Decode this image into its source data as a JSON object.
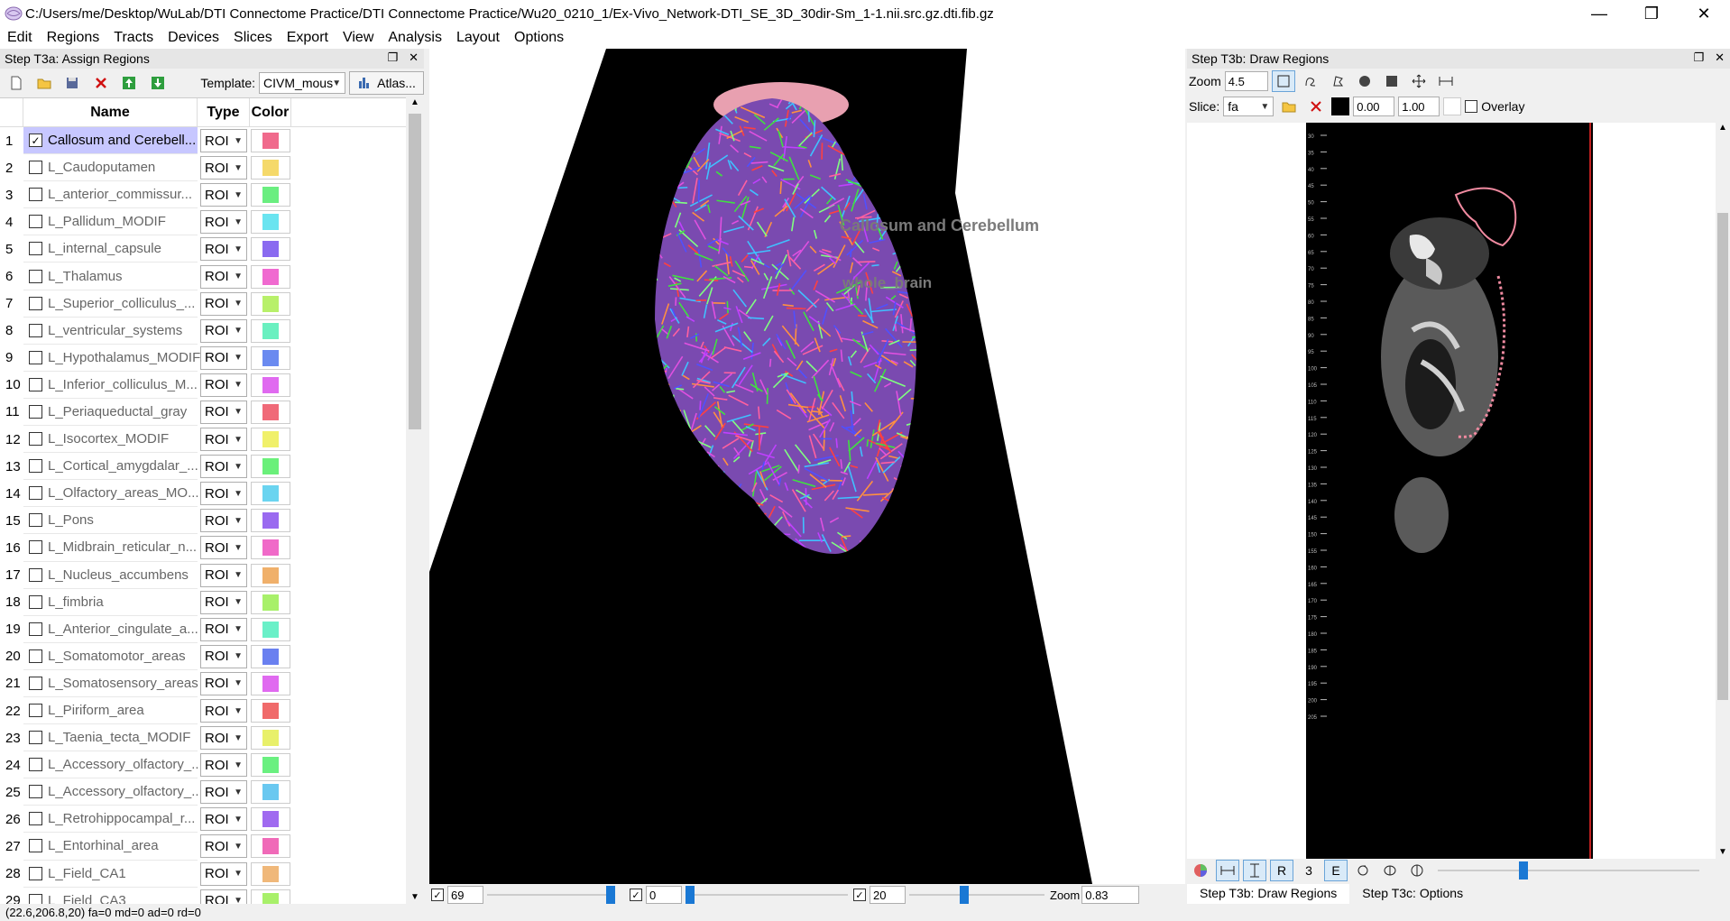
{
  "window": {
    "title": "C:/Users/me/Desktop/WuLab/DTI Connectome Practice/DTI Connectome Practice/Wu20_0210_1/Ex-Vivo_Network-DTI_SE_3D_30dir-Sm_1-1.nii.src.gz.dti.fib.gz",
    "minimize": "—",
    "maximize": "❐",
    "close": "✕"
  },
  "menu": [
    "Edit",
    "Regions",
    "Tracts",
    "Devices",
    "Slices",
    "Export",
    "View",
    "Analysis",
    "Layout",
    "Options"
  ],
  "left_panel": {
    "title": "Step T3a: Assign Regions",
    "template_label": "Template:",
    "template_value": "CIVM_mous",
    "atlas_button": "Atlas...",
    "columns": {
      "name": "Name",
      "type": "Type",
      "color": "Color"
    },
    "rows": [
      {
        "num": "1",
        "name": "Callosum and Cerebell...",
        "type": "ROI",
        "color": "#f06a8c",
        "checked": true
      },
      {
        "num": "2",
        "name": "L_Caudoputamen",
        "type": "ROI",
        "color": "#f5d96a",
        "checked": false
      },
      {
        "num": "3",
        "name": "L_anterior_commissur...",
        "type": "ROI",
        "color": "#6aee80",
        "checked": false
      },
      {
        "num": "4",
        "name": "L_Pallidum_MODIF",
        "type": "ROI",
        "color": "#6ae4f0",
        "checked": false
      },
      {
        "num": "5",
        "name": "L_internal_capsule",
        "type": "ROI",
        "color": "#8a6af0",
        "checked": false
      },
      {
        "num": "6",
        "name": "L_Thalamus",
        "type": "ROI",
        "color": "#f06ad0",
        "checked": false
      },
      {
        "num": "7",
        "name": "L_Superior_colliculus_...",
        "type": "ROI",
        "color": "#b8f06a",
        "checked": false
      },
      {
        "num": "8",
        "name": "L_ventricular_systems",
        "type": "ROI",
        "color": "#6af0c0",
        "checked": false
      },
      {
        "num": "9",
        "name": "L_Hypothalamus_MODIF",
        "type": "ROI",
        "color": "#6a8af0",
        "checked": false
      },
      {
        "num": "10",
        "name": "L_Inferior_colliculus_M...",
        "type": "ROI",
        "color": "#e06af0",
        "checked": false
      },
      {
        "num": "11",
        "name": "L_Periaqueductal_gray",
        "type": "ROI",
        "color": "#f06a78",
        "checked": false
      },
      {
        "num": "12",
        "name": "L_Isocortex_MODIF",
        "type": "ROI",
        "color": "#f0f06a",
        "checked": false
      },
      {
        "num": "13",
        "name": "L_Cortical_amygdalar_...",
        "type": "ROI",
        "color": "#6af07a",
        "checked": false
      },
      {
        "num": "14",
        "name": "L_Olfactory_areas_MO...",
        "type": "ROI",
        "color": "#6ad4f0",
        "checked": false
      },
      {
        "num": "15",
        "name": "L_Pons",
        "type": "ROI",
        "color": "#9a6af0",
        "checked": false
      },
      {
        "num": "16",
        "name": "L_Midbrain_reticular_n...",
        "type": "ROI",
        "color": "#f06ac8",
        "checked": false
      },
      {
        "num": "17",
        "name": "L_Nucleus_accumbens",
        "type": "ROI",
        "color": "#f0b06a",
        "checked": false
      },
      {
        "num": "18",
        "name": "L_fimbria",
        "type": "ROI",
        "color": "#a8f06a",
        "checked": false
      },
      {
        "num": "19",
        "name": "L_Anterior_cingulate_a...",
        "type": "ROI",
        "color": "#6af0c8",
        "checked": false
      },
      {
        "num": "20",
        "name": "L_Somatomotor_areas",
        "type": "ROI",
        "color": "#6a80f0",
        "checked": false
      },
      {
        "num": "21",
        "name": "L_Somatosensory_areas",
        "type": "ROI",
        "color": "#e06af0",
        "checked": false
      },
      {
        "num": "22",
        "name": "L_Piriform_area",
        "type": "ROI",
        "color": "#f06a6a",
        "checked": false
      },
      {
        "num": "23",
        "name": "L_Taenia_tecta_MODIF",
        "type": "ROI",
        "color": "#e8f06a",
        "checked": false
      },
      {
        "num": "24",
        "name": "L_Accessory_olfactory_...",
        "type": "ROI",
        "color": "#6af080",
        "checked": false
      },
      {
        "num": "25",
        "name": "L_Accessory_olfactory_...",
        "type": "ROI",
        "color": "#6ac8f0",
        "checked": false
      },
      {
        "num": "26",
        "name": "L_Retrohippocampal_r...",
        "type": "ROI",
        "color": "#a06af0",
        "checked": false
      },
      {
        "num": "27",
        "name": "L_Entorhinal_area",
        "type": "ROI",
        "color": "#f06ab8",
        "checked": false
      },
      {
        "num": "28",
        "name": "L_Field_CA1",
        "type": "ROI",
        "color": "#f0b87a",
        "checked": false
      },
      {
        "num": "29",
        "name": "L_Field_CA3",
        "type": "ROI",
        "color": "#a8f06a",
        "checked": false
      }
    ]
  },
  "view3d": {
    "label_region": "Callosum and Cerebellum",
    "label_whole": "whole_brain",
    "slider1_value": "69",
    "slider2_value": "0",
    "slider3_value": "20",
    "zoom_label": "Zoom",
    "zoom_value": "0.83"
  },
  "right_panel": {
    "title": "Step T3b: Draw Regions",
    "zoom_label": "Zoom",
    "zoom_value": "4.5",
    "slice_label": "Slice:",
    "slice_value": "fa",
    "min_value": "0.00",
    "max_value": "1.00",
    "overlay_label": "Overlay",
    "ruler_ticks": [
      "30",
      "35",
      "40",
      "45",
      "50",
      "55",
      "60",
      "65",
      "70",
      "75",
      "80",
      "85",
      "90",
      "95",
      "100",
      "105",
      "110",
      "115",
      "120",
      "125",
      "130",
      "135",
      "140",
      "145",
      "150",
      "155",
      "160",
      "165",
      "170",
      "175",
      "180",
      "185",
      "190",
      "195",
      "200",
      "205"
    ],
    "bottom_r": "R",
    "bottom_3": "3",
    "bottom_e": "E",
    "tabs": [
      "Step T3b: Draw Regions",
      "Step T3c: Options"
    ]
  },
  "status": "(22.6,206.8,20)  fa=0 md=0 ad=0 rd=0"
}
